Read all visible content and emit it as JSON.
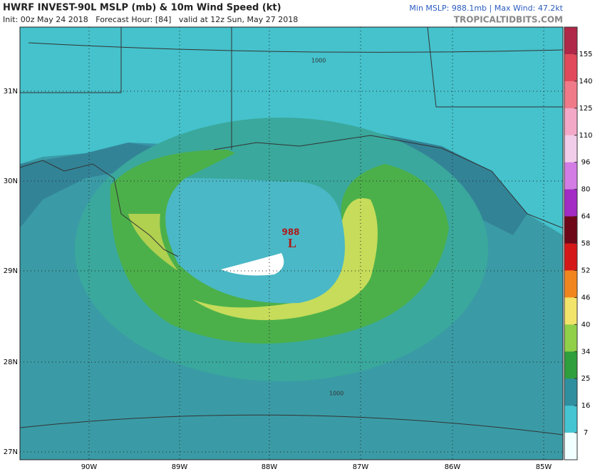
{
  "header": {
    "title": "HWRF INVEST-90L MSLP (mb) & 10m Wind Speed (kt)",
    "info": "Init: 00z May 24 2018   Forecast Hour: [84]   valid at 12z Sun, May 27 2018",
    "stats": "Min MSLP: 988.1mb | Max Wind: 47.2kt",
    "site": "TROPICALTIDBITS.COM"
  },
  "map": {
    "latitudes": [
      "31N",
      "30N",
      "29N",
      "28N",
      "27N"
    ],
    "longitudes": [
      "90W",
      "89W",
      "88W",
      "87W",
      "86W",
      "85W"
    ],
    "low": {
      "pressure": "988",
      "symbol": "L"
    },
    "contour_labels": [
      "1000",
      "1000"
    ]
  },
  "colorbar": {
    "ticks": [
      155,
      140,
      125,
      110,
      96,
      80,
      64,
      58,
      52,
      46,
      40,
      34,
      25,
      16,
      7
    ],
    "colors": [
      "#b02848",
      "#e04a5a",
      "#f07a88",
      "#f4a8c8",
      "#f2cdea",
      "#d27ce4",
      "#a22cc4",
      "#6e0818",
      "#d41818",
      "#f2861e",
      "#f2e46a",
      "#8fd048",
      "#2f9e3c",
      "#2f8f9e",
      "#45c4d2",
      "#f0ffff"
    ]
  }
}
